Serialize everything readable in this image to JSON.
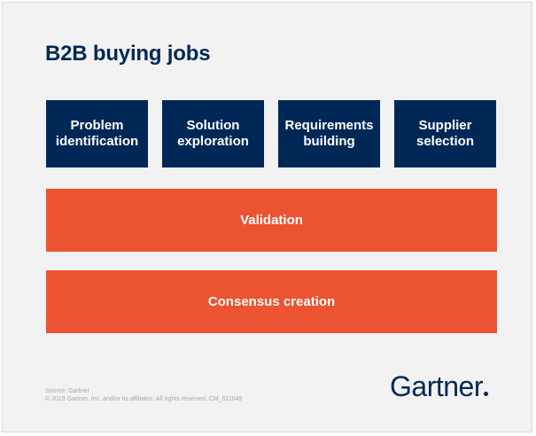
{
  "title": "B2B buying jobs",
  "jobs": [
    {
      "label": "Problem\nidentification"
    },
    {
      "label": "Solution\nexploration"
    },
    {
      "label": "Requirements\nbuilding"
    },
    {
      "label": "Supplier\nselection"
    }
  ],
  "bands": [
    {
      "label": "Validation"
    },
    {
      "label": "Consensus creation"
    }
  ],
  "source": {
    "line1": "Source: Gartner",
    "line2": "© 2019 Gartner, Inc. and/or its affiliates. All rights reserved. CM_611049"
  },
  "logo": "Gartner",
  "colors": {
    "navy": "#002856",
    "orange": "#ec5332",
    "background": "#f2f2f2"
  }
}
